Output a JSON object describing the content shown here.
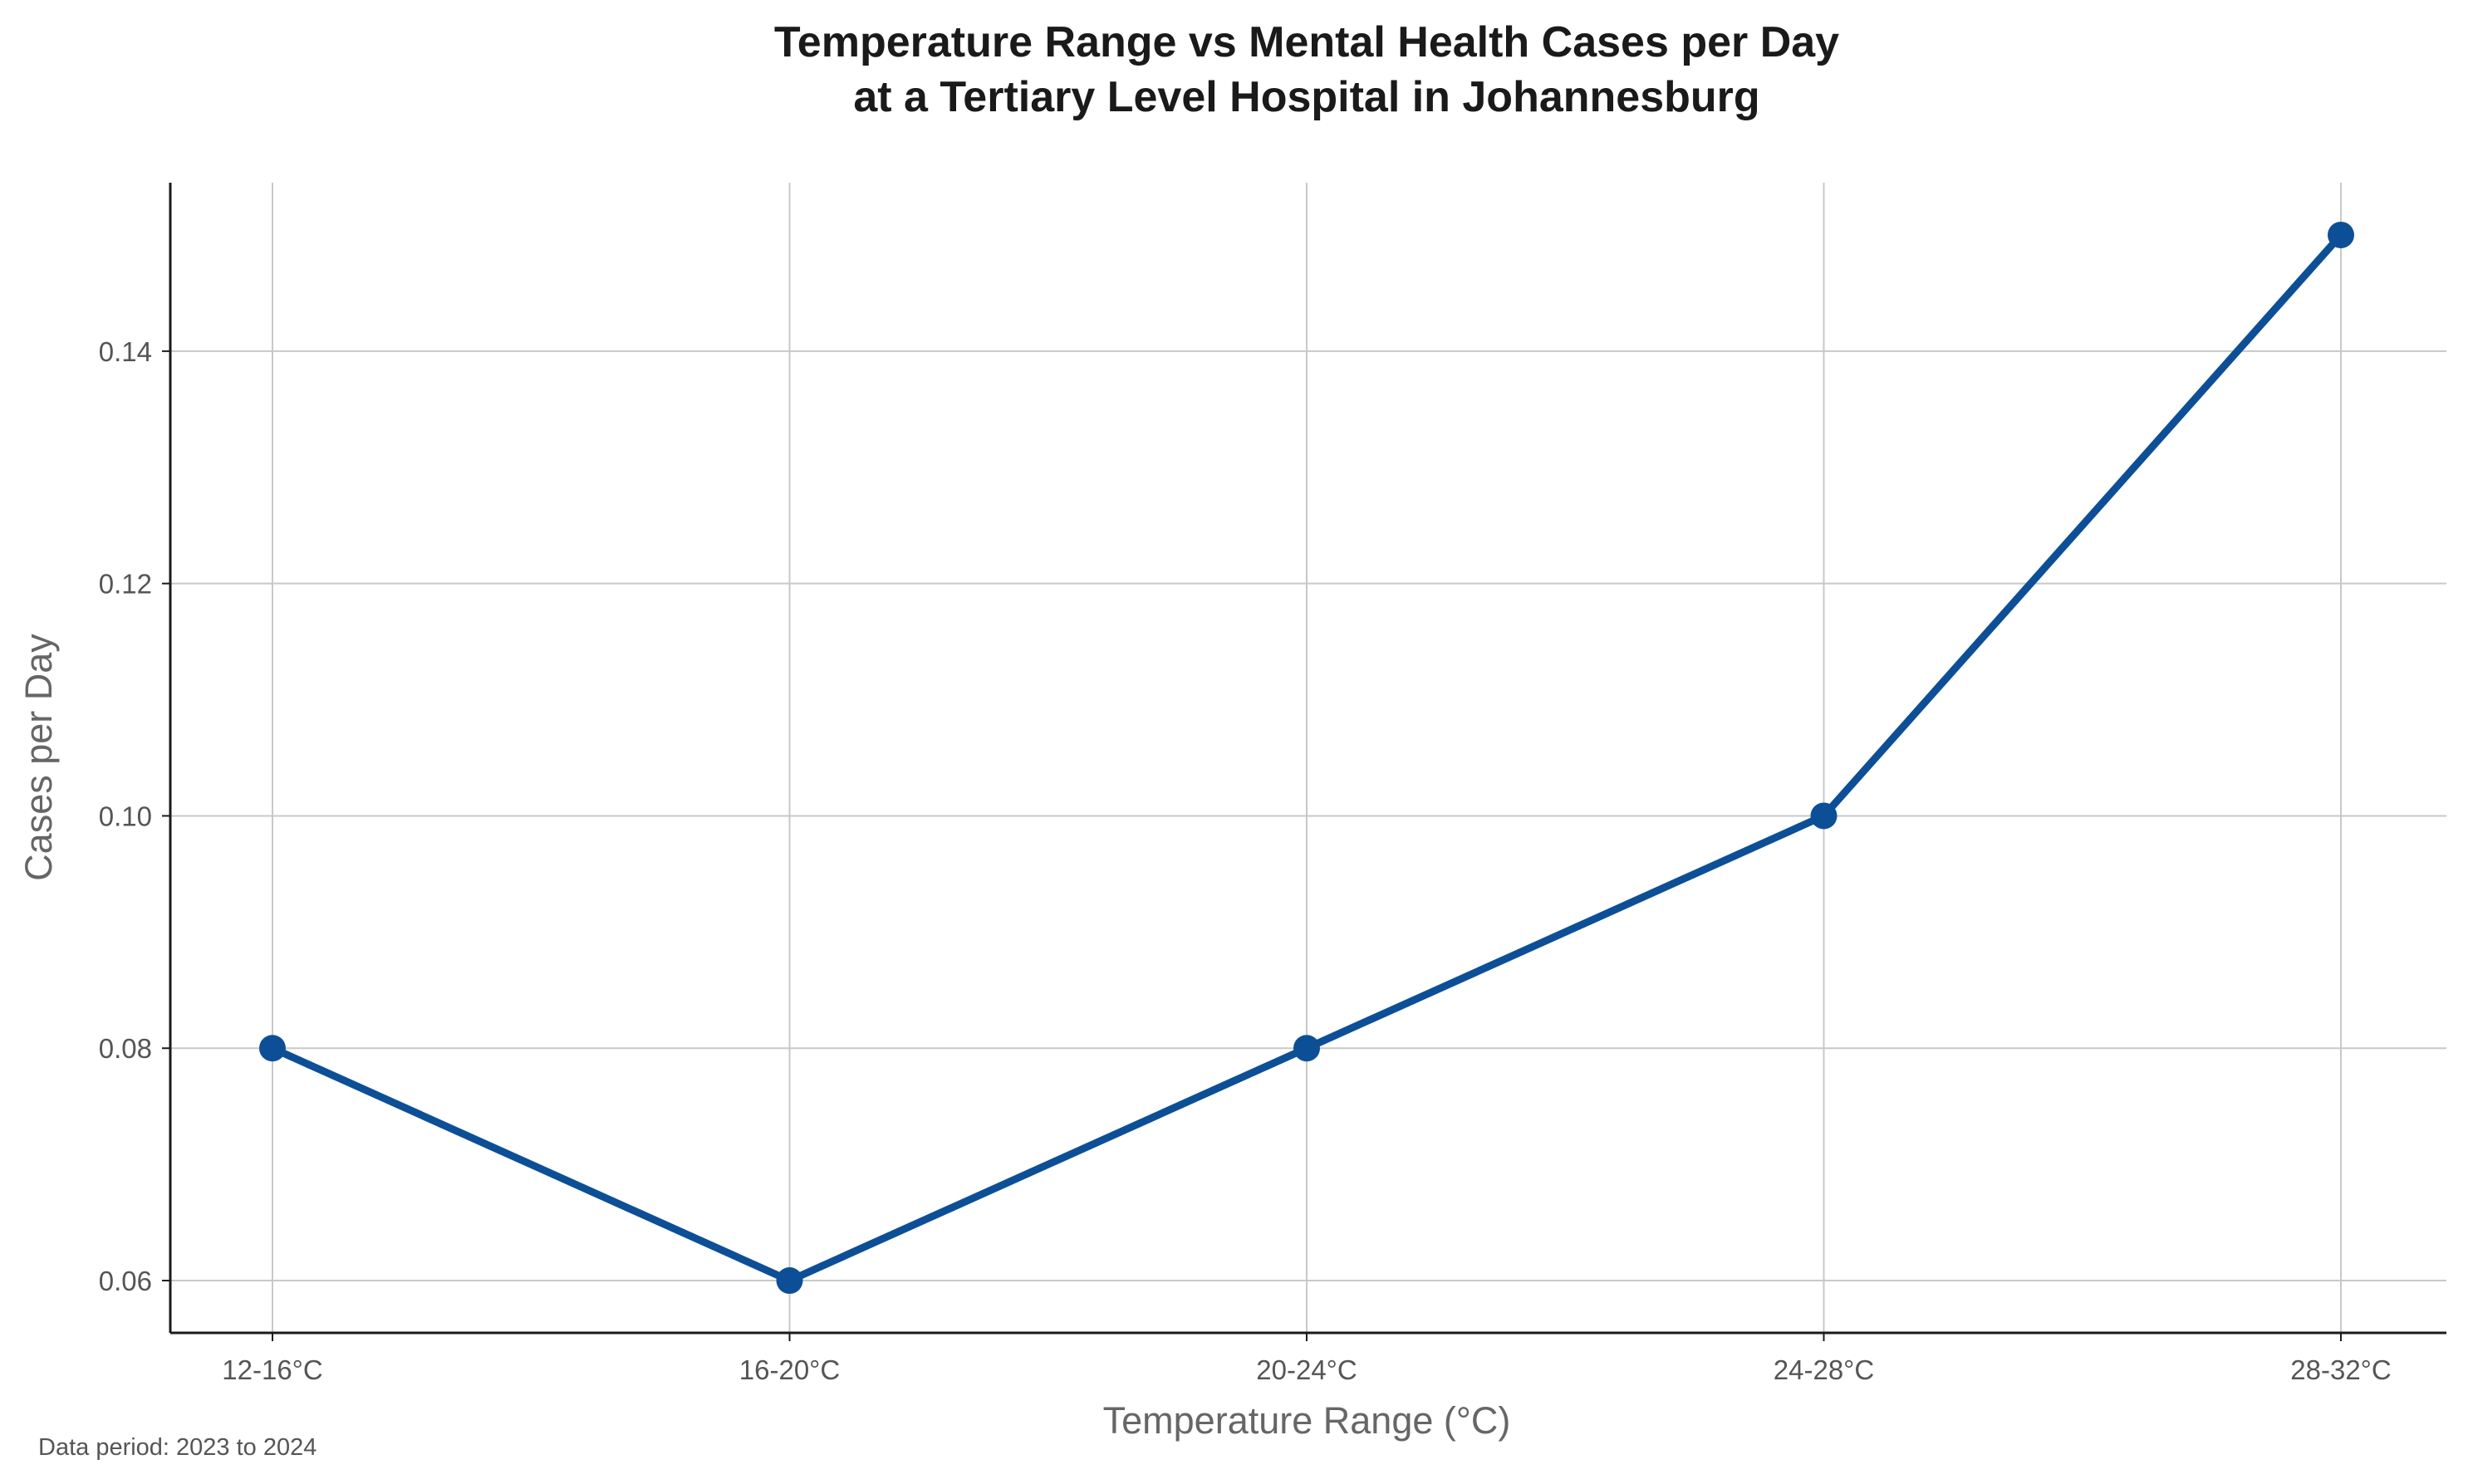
{
  "chart_data": {
    "type": "line",
    "title_line1": "Temperature Range vs Mental Health Cases per Day",
    "title_line2": "at a Tertiary Level Hospital in Johannesburg",
    "xlabel": "Temperature Range (°C)",
    "ylabel": "Cases per Day",
    "categories": [
      "12-16°C",
      "16-20°C",
      "20-24°C",
      "24-28°C",
      "28-32°C"
    ],
    "series": [
      {
        "values": [
          0.08,
          0.06,
          0.08,
          0.1,
          0.15
        ]
      }
    ],
    "ylim": [
      0.0555,
      0.1545
    ],
    "yticks": [
      0.06,
      0.08,
      0.1,
      0.12,
      0.14
    ],
    "ytick_labels": [
      "0.06",
      "0.08",
      "0.10",
      "0.12",
      "0.14"
    ],
    "grid": true,
    "legend": "none",
    "footnote": "Data period: 2023 to 2024",
    "colors": {
      "line": "#0d4f96",
      "grid": "#c8c8c8",
      "axis": "#1a1a1a"
    }
  }
}
